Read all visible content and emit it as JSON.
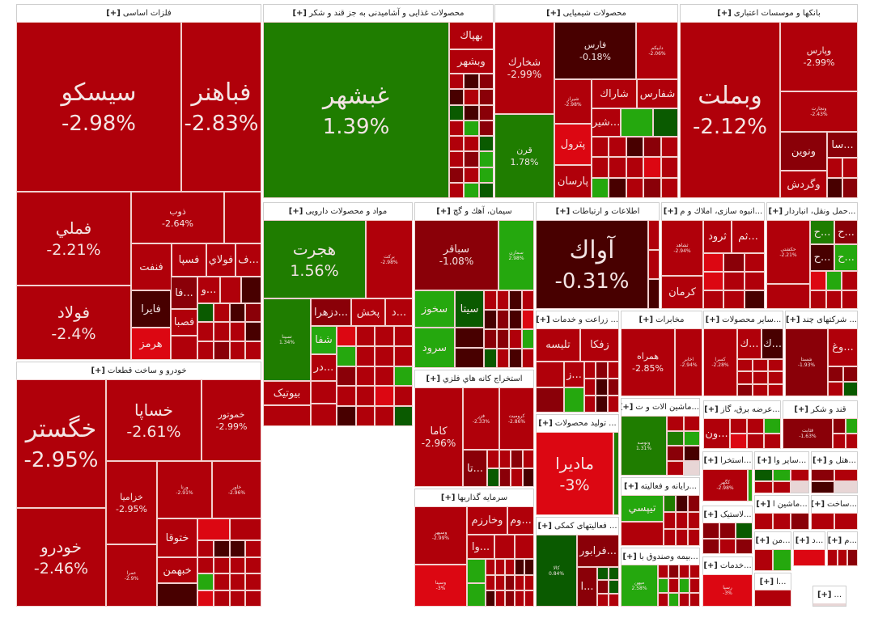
{
  "expand_label": "[+]",
  "colors": {
    "r": "#b0000a",
    "d": "#8a0008",
    "k": "#480000",
    "b": "#dc0712",
    "g": "#1f7d00",
    "l": "#25a80e",
    "G": "#0a5a00"
  },
  "sectors": [
    {
      "title": "فلزات اساسی",
      "tiles": [
        {
          "name": "سیسکو",
          "pct": "-2.98%",
          "c": "r"
        },
        {
          "name": "فباهنر",
          "pct": "-2.83%",
          "c": "r"
        },
        {
          "name": "فملي",
          "pct": "-2.21%",
          "c": "r"
        },
        {
          "name": "فولاد",
          "pct": "-2.4%",
          "c": "r"
        },
        {
          "name": "ذوب",
          "pct": "-2.64%",
          "c": "r"
        },
        {
          "name": "فنفت",
          "c": "r"
        },
        {
          "name": "فسپا",
          "c": "r"
        },
        {
          "name": "فولاي",
          "c": "r"
        },
        {
          "name": "...ف",
          "c": "r"
        },
        {
          "name": "فايرا",
          "c": "k"
        },
        {
          "name": "هرمز",
          "c": "b"
        },
        {
          "name": "...فا",
          "c": "d"
        },
        {
          "name": "...و",
          "c": "r"
        },
        {
          "name": "فصبا",
          "c": "r"
        }
      ],
      "filler": [
        "r",
        "r",
        "k",
        "G",
        "r",
        "k",
        "d",
        "r",
        "r",
        "r",
        "k",
        "r",
        "d",
        "r",
        "r"
      ]
    },
    {
      "title": "خودرو و ساخت قطعات",
      "tiles": [
        {
          "name": "خگستر",
          "pct": "-2.95%",
          "c": "r"
        },
        {
          "name": "خودرو",
          "pct": "-2.46%",
          "c": "r"
        },
        {
          "name": "خساپا",
          "pct": "-2.61%",
          "c": "r"
        },
        {
          "name": "خموتور",
          "pct": "-2.99%",
          "c": "r"
        },
        {
          "name": "خزامیا",
          "pct": "-2.95%",
          "c": "r"
        },
        {
          "name": "ورنا",
          "pct": "-2.91%",
          "c": "r"
        },
        {
          "name": "خاور",
          "pct": "-2.96%",
          "c": "r"
        },
        {
          "name": "عمرا",
          "pct": "-2.9%",
          "c": "r"
        },
        {
          "name": "ختوقا",
          "c": "r"
        },
        {
          "name": "خبهمن",
          "c": "r"
        }
      ],
      "filler": [
        "k",
        "b",
        "r",
        "r",
        "k",
        "k",
        "r",
        "r",
        "r",
        "r",
        "r",
        "l",
        "r",
        "r",
        "r",
        "b",
        "r",
        "r",
        "r"
      ]
    },
    {
      "title": "محصولات غذایی و آشامیدنی به جز قند و شکر",
      "tiles": [
        {
          "name": "غبشهر",
          "pct": "1.39%",
          "c": "g"
        },
        {
          "name": "بهپاك",
          "c": "r"
        },
        {
          "name": "وبشهر",
          "c": "r"
        }
      ],
      "filler": [
        "r",
        "k",
        "d",
        "k",
        "r",
        "d",
        "G",
        "k",
        "d",
        "r",
        "l",
        "d",
        "r",
        "r",
        "G",
        "r",
        "d",
        "l",
        "d",
        "r",
        "l",
        "r",
        "l",
        "G"
      ]
    },
    {
      "title": "محصولات شیمیایی",
      "tiles": [
        {
          "name": "شخارك",
          "pct": "-2.99%",
          "c": "r"
        },
        {
          "name": "قرن",
          "pct": "1.78%",
          "c": "g"
        },
        {
          "name": "فارس",
          "pct": "-0.18%",
          "c": "k"
        },
        {
          "name": "دابیکم",
          "pct": "-2.06%",
          "c": "r"
        },
        {
          "name": "شیراز",
          "pct": "-2.98%",
          "c": "r"
        },
        {
          "name": "شاراك",
          "c": "r"
        },
        {
          "name": "شفارس",
          "c": "r"
        },
        {
          "name": "...شیر",
          "c": "r"
        },
        {
          "name": "پترول",
          "c": "b"
        },
        {
          "name": "پارسان",
          "c": "r"
        }
      ],
      "filler": [
        "l",
        "G",
        "r",
        "r",
        "k",
        "d",
        "r",
        "r",
        "r",
        "r",
        "b",
        "r",
        "l",
        "k",
        "r",
        "d",
        "r"
      ]
    },
    {
      "title": "بانکها و موسسات اعتباری",
      "tiles": [
        {
          "name": "وبملت",
          "pct": "-2.12%",
          "c": "r"
        },
        {
          "name": "وپارس",
          "pct": "-2.99%",
          "c": "r"
        },
        {
          "name": "وتجارت",
          "pct": "-2.43%",
          "c": "r"
        },
        {
          "name": "ونوین",
          "c": "d"
        },
        {
          "name": "...سا",
          "c": "d"
        },
        {
          "name": "وگردش",
          "c": "r"
        }
      ],
      "filler": [
        "r",
        "r",
        "k",
        "d"
      ]
    },
    {
      "title": "مواد و محصولات دارویی",
      "tiles": [
        {
          "name": "هجرت",
          "pct": "1.56%",
          "c": "g"
        },
        {
          "name": "برکت",
          "pct": "-2.98%",
          "c": "r"
        },
        {
          "name": "تسینا",
          "pct": "1.34%",
          "c": "g"
        },
        {
          "name": "...دزهرا",
          "c": "d"
        },
        {
          "name": "پخش",
          "c": "r"
        },
        {
          "name": "...د",
          "c": "r"
        },
        {
          "name": "شفا",
          "c": "l"
        },
        {
          "name": "...در",
          "c": "r"
        },
        {
          "name": "بیوتیک",
          "c": "r"
        }
      ],
      "filler": [
        "b",
        "r",
        "r",
        "r",
        "l",
        "r",
        "r",
        "r",
        "d",
        "r",
        "r",
        "l",
        "r",
        "r",
        "b",
        "r",
        "k",
        "r",
        "r",
        "G",
        "r",
        "r",
        "r"
      ]
    },
    {
      "title": "سیمان، آهك و گچ",
      "tiles": [
        {
          "name": "سباقر",
          "pct": "-1.08%",
          "c": "d"
        },
        {
          "name": "سمازن",
          "pct": "2.98%",
          "c": "l"
        },
        {
          "name": "سخوز",
          "c": "l"
        },
        {
          "name": "سیتا",
          "c": "G"
        },
        {
          "name": "سرود",
          "c": "l"
        }
      ],
      "filler": [
        "k",
        "k",
        "r",
        "r",
        "k",
        "r",
        "k",
        "d",
        "k",
        "b",
        "d",
        "d",
        "r",
        "l",
        "G",
        "r",
        "k",
        "r"
      ]
    },
    {
      "title": "اطلاعات و ارتباطات",
      "tiles": [
        {
          "name": "آواك",
          "pct": "-0.31%",
          "c": "k"
        }
      ],
      "filler": [
        "r",
        "r",
        "k"
      ]
    },
    {
      "title": "...انبوه سازی، املاك و م",
      "tiles": [
        {
          "name": "ثشاهد",
          "pct": "-2.94%",
          "c": "r"
        },
        {
          "name": "کرمان",
          "c": "r"
        },
        {
          "name": "ثرود",
          "c": "r"
        },
        {
          "name": "...ثم",
          "c": "r"
        }
      ],
      "filler": [
        "b",
        "d",
        "r",
        "b",
        "r",
        "r",
        "r",
        "r",
        "k"
      ]
    },
    {
      "title": "...حمل ونقل، انباردار",
      "tiles": [
        {
          "name": "حکشتی",
          "pct": "-2.21%",
          "c": "r"
        },
        {
          "name": "...ح",
          "c": "g"
        },
        {
          "name": "...ح",
          "c": "d"
        },
        {
          "name": "...ح",
          "c": "k"
        },
        {
          "name": "...ح",
          "c": "l"
        }
      ],
      "filler": [
        "r",
        "b",
        "l",
        "r",
        "r",
        "r",
        "r"
      ]
    },
    {
      "title": "استخراج کانه هاي فلزي",
      "tiles": [
        {
          "name": "کاما",
          "pct": "-2.96%",
          "c": "r"
        },
        {
          "name": "فزر",
          "pct": "-2.33%",
          "c": "r"
        },
        {
          "name": "کرومیت",
          "pct": "-2.86%",
          "c": "r"
        },
        {
          "name": "...تا",
          "c": "d"
        }
      ],
      "filler": [
        "r",
        "r",
        "d",
        "r",
        "G",
        "d",
        "r",
        "k"
      ]
    },
    {
      "title": "سرمایه گذاریها",
      "tiles": [
        {
          "name": "وسپهر",
          "pct": "-2.99%",
          "c": "r"
        },
        {
          "name": "وسینا",
          "pct": "-3%",
          "c": "b"
        },
        {
          "name": "وخارزم",
          "c": "r"
        },
        {
          "name": "...وم",
          "c": "r"
        },
        {
          "name": "...وا",
          "c": "r"
        }
      ],
      "filler": [
        "r",
        "r",
        "l",
        "l",
        "r",
        "r",
        "r",
        "k",
        "k",
        "r",
        "r",
        "d",
        "r",
        "r",
        "k",
        "r",
        "d",
        "r",
        "r"
      ]
    },
    {
      "title": "... زراعت و خدمات",
      "tiles": [
        {
          "name": "تلیسه",
          "c": "r"
        },
        {
          "name": "زفکا",
          "c": "r"
        },
        {
          "name": "...ز",
          "c": "r"
        }
      ],
      "filler": [
        "r",
        "d",
        "r",
        "d",
        "r",
        "r",
        "k",
        "d",
        "r",
        "k",
        "r",
        "l"
      ]
    },
    {
      "title": "... تولید محصولات",
      "tiles": [
        {
          "name": "ماديرا",
          "pct": "-3%",
          "c": "b"
        }
      ],
      "filler": [
        "g"
      ]
    },
    {
      "title": "... فعالیتهای کمکی",
      "tiles": [
        {
          "name": "کالا",
          "pct": "0.84%",
          "c": "G"
        },
        {
          "name": "...فرابور",
          "c": "d"
        },
        {
          "name": "...ا",
          "c": "d"
        }
      ],
      "filler": [
        "G",
        "G",
        "d",
        "G",
        "r",
        "r"
      ]
    },
    {
      "title": "مخابرات",
      "tiles": [
        {
          "name": "همراه",
          "pct": "-2.85%",
          "c": "r"
        },
        {
          "name": "اخابر",
          "pct": "-2.94%",
          "c": "r"
        }
      ],
      "filler": []
    },
    {
      "title": "...ماشین الات و ت",
      "tiles": [
        {
          "name": "وتوصه",
          "pct": "1.31%",
          "c": "g"
        }
      ],
      "filler": [
        "r",
        "r",
        "g",
        "l",
        "d",
        "k",
        "r"
      ]
    },
    {
      "title": "...رایانه و فعالیته",
      "tiles": [
        {
          "name": "تیپسي",
          "c": "l"
        }
      ],
      "filler": [
        "r",
        "g",
        "k",
        "d",
        "r",
        "r",
        "r",
        "r",
        "r",
        "r"
      ]
    },
    {
      "title": "...بیمه وصندوق با",
      "tiles": [
        {
          "name": "میهن",
          "pct": "2.58%",
          "c": "l"
        }
      ],
      "filler": [
        "r",
        "d",
        "r",
        "r",
        "l",
        "r",
        "l",
        "r",
        "r",
        "l",
        "r",
        "r"
      ]
    },
    {
      "title": "...سایر محصولات",
      "tiles": [
        {
          "name": "کسرا",
          "pct": "-2.28%",
          "c": "r"
        },
        {
          "name": "...ك",
          "c": "r"
        },
        {
          "name": "...ك",
          "c": "k"
        }
      ],
      "filler": [
        "r",
        "r",
        "r",
        "r",
        "r",
        "r",
        "d",
        "r",
        "r"
      ]
    },
    {
      "title": "... شرکتهای چند",
      "tiles": [
        {
          "name": "شستا",
          "pct": "-1.93%",
          "c": "d"
        },
        {
          "name": "...وغ",
          "c": "r"
        }
      ],
      "filler": [
        "d",
        "d",
        "r",
        "G"
      ]
    },
    {
      "title": "...عرضه برق، گاز",
      "tiles": [
        {
          "name": "...ون",
          "c": "r"
        }
      ],
      "filler": [
        "r",
        "r",
        "l",
        "b",
        "r",
        "r"
      ]
    },
    {
      "title": "قند و شکر",
      "tiles": [
        {
          "name": "قثابت",
          "pct": "-1.63%",
          "c": "d"
        }
      ],
      "filler": [
        "d",
        "l",
        "r",
        "r"
      ]
    },
    {
      "title": "...استخرا",
      "tiles": [
        {
          "name": "کگهر",
          "pct": "-2.98%",
          "c": "r"
        }
      ],
      "filler": [
        "l"
      ]
    },
    {
      "title": "...سایر وا",
      "tiles": [],
      "filler": [
        "G",
        "l",
        "r",
        "r",
        "r"
      ]
    },
    {
      "title": "...هتل و",
      "tiles": [],
      "filler": [
        "d",
        "r",
        "k"
      ]
    },
    {
      "title": "...ماشین ا",
      "tiles": [],
      "filler": [
        "r",
        "r",
        "d"
      ]
    },
    {
      "title": "...ساخت",
      "tiles": [],
      "filler": [
        "r",
        "r"
      ]
    },
    {
      "title": "...لاستیک",
      "tiles": [],
      "filler": [
        "d",
        "d",
        "G",
        "d",
        "r",
        "d"
      ]
    },
    {
      "title": "...من",
      "tiles": [],
      "filler": [
        "r",
        "l"
      ]
    },
    {
      "title": "...د",
      "tiles": [],
      "filler": [
        "b"
      ]
    },
    {
      "title": "...م",
      "tiles": [],
      "filler": [
        "r",
        "r",
        "d"
      ]
    },
    {
      "title": "...خدمات",
      "tiles": [
        {
          "name": "رسپا",
          "pct": "-3%",
          "c": "b"
        }
      ],
      "filler": []
    },
    {
      "title": "...ا",
      "tiles": [],
      "filler": [
        "r"
      ]
    },
    {
      "title": "...",
      "tiles": [],
      "filler": []
    }
  ]
}
